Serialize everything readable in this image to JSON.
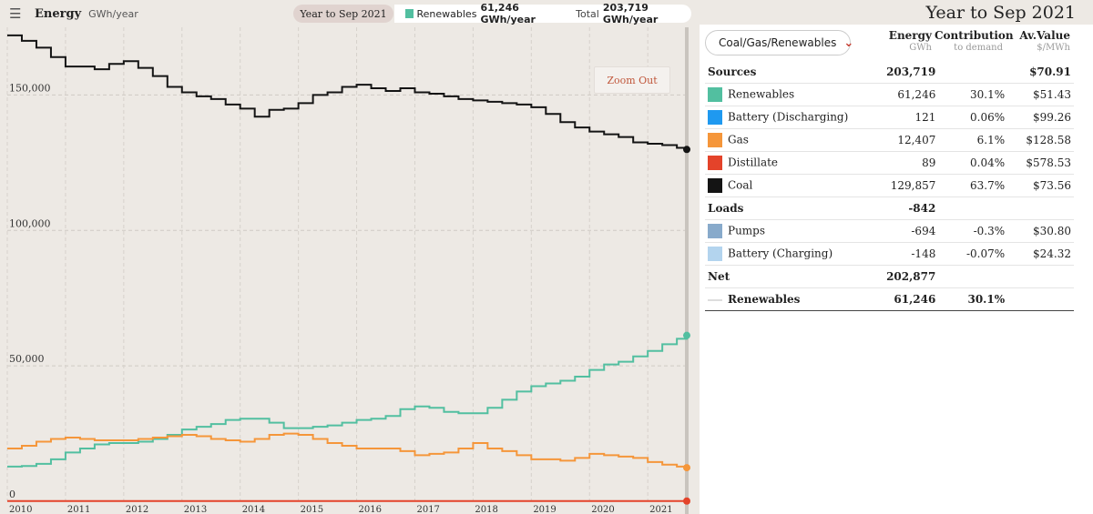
{
  "header": {
    "menu_icon": "hamburger-menu-icon",
    "title": "Energy",
    "unit": "GWh/year",
    "period": "Year to Sep 2021",
    "legend_series": "Renewables",
    "legend_value": "61,246 GWh/year",
    "total_label": "Total",
    "total_value": "203,719 GWh/year",
    "zoom_out": "Zoom Out"
  },
  "side": {
    "title": "Year to Sep 2021",
    "group_select": "Coal/Gas/Renewables",
    "columns": {
      "energy": "Energy",
      "energy_unit": "GWh",
      "contribution": "Contribution",
      "contribution_sub": "to demand",
      "value": "Av.Value",
      "value_unit": "$/MWh"
    },
    "sources": {
      "label": "Sources",
      "energy": "203,719",
      "value": "$70.91"
    },
    "source_rows": [
      {
        "name": "Renewables",
        "color": "#52bfa0",
        "energy": "61,246",
        "contribution": "30.1%",
        "value": "$51.43"
      },
      {
        "name": "Battery (Discharging)",
        "color": "#1f99f0",
        "energy": "121",
        "contribution": "0.06%",
        "value": "$99.26"
      },
      {
        "name": "Gas",
        "color": "#f5963a",
        "energy": "12,407",
        "contribution": "6.1%",
        "value": "$128.58"
      },
      {
        "name": "Distillate",
        "color": "#e4432a",
        "energy": "89",
        "contribution": "0.04%",
        "value": "$578.53"
      },
      {
        "name": "Coal",
        "color": "#141414",
        "energy": "129,857",
        "contribution": "63.7%",
        "value": "$73.56"
      }
    ],
    "loads": {
      "label": "Loads",
      "energy": "-842"
    },
    "load_rows": [
      {
        "name": "Pumps",
        "color": "#88aacb",
        "energy": "-694",
        "contribution": "-0.3%",
        "value": "$30.80"
      },
      {
        "name": "Battery (Charging)",
        "color": "#b3d4ee",
        "energy": "-148",
        "contribution": "-0.07%",
        "value": "$24.32"
      }
    ],
    "net": {
      "label": "Net",
      "energy": "202,877"
    },
    "renewables_row": {
      "label": "Renewables",
      "energy": "61,246",
      "contribution": "30.1%"
    }
  },
  "chart_data": {
    "type": "line",
    "ylim": [
      0,
      175000
    ],
    "xlim": [
      2010.0,
      2021.67
    ],
    "yticks": [
      0,
      50000,
      100000,
      150000
    ],
    "ytick_labels": [
      "0",
      "50,000",
      "100,000",
      "150,000"
    ],
    "xticks": [
      2010,
      2011,
      2012,
      2013,
      2014,
      2015,
      2016,
      2017,
      2018,
      2019,
      2020,
      2021
    ],
    "grid": true,
    "series": [
      {
        "name": "Coal",
        "color": "#141414",
        "x": [
          2010.0,
          2010.25,
          2010.5,
          2010.75,
          2011.0,
          2011.25,
          2011.5,
          2011.75,
          2012.0,
          2012.25,
          2012.5,
          2012.75,
          2013.0,
          2013.25,
          2013.5,
          2013.75,
          2014.0,
          2014.25,
          2014.5,
          2014.75,
          2015.0,
          2015.25,
          2015.5,
          2015.75,
          2016.0,
          2016.25,
          2016.5,
          2016.75,
          2017.0,
          2017.25,
          2017.5,
          2017.75,
          2018.0,
          2018.25,
          2018.5,
          2018.75,
          2019.0,
          2019.25,
          2019.5,
          2019.75,
          2020.0,
          2020.25,
          2020.5,
          2020.75,
          2021.0,
          2021.25,
          2021.5,
          2021.67
        ],
        "y": [
          172000,
          170000,
          167500,
          164000,
          160500,
          160500,
          159500,
          161500,
          162500,
          160000,
          157000,
          153000,
          151000,
          149500,
          148500,
          146500,
          145000,
          142000,
          144500,
          145000,
          147000,
          150000,
          151000,
          153000,
          153800,
          152500,
          151500,
          152500,
          151000,
          150500,
          149500,
          148500,
          148000,
          147500,
          147000,
          146500,
          145500,
          143000,
          140000,
          138000,
          136500,
          135500,
          134500,
          132500,
          132000,
          131500,
          130500,
          129900
        ]
      },
      {
        "name": "Renewables",
        "color": "#52bfa0",
        "x": [
          2010.0,
          2010.25,
          2010.5,
          2010.75,
          2011.0,
          2011.25,
          2011.5,
          2011.75,
          2012.0,
          2012.25,
          2012.5,
          2012.75,
          2013.0,
          2013.25,
          2013.5,
          2013.75,
          2014.0,
          2014.25,
          2014.5,
          2014.75,
          2015.0,
          2015.25,
          2015.5,
          2015.75,
          2016.0,
          2016.25,
          2016.5,
          2016.75,
          2017.0,
          2017.25,
          2017.5,
          2017.75,
          2018.0,
          2018.25,
          2018.5,
          2018.75,
          2019.0,
          2019.25,
          2019.5,
          2019.75,
          2020.0,
          2020.25,
          2020.5,
          2020.75,
          2021.0,
          2021.25,
          2021.5,
          2021.67
        ],
        "y": [
          12800,
          13000,
          13800,
          15500,
          18000,
          19500,
          21000,
          21500,
          21500,
          22000,
          23000,
          24500,
          26500,
          27500,
          28500,
          30000,
          30500,
          30500,
          29000,
          27000,
          27000,
          27500,
          28000,
          29000,
          30000,
          30500,
          31500,
          34000,
          35000,
          34500,
          33000,
          32500,
          32500,
          34500,
          37500,
          40500,
          42500,
          43500,
          44500,
          46000,
          48500,
          50500,
          51500,
          53500,
          55500,
          58000,
          60000,
          61246
        ]
      },
      {
        "name": "Gas",
        "color": "#f5963a",
        "x": [
          2010.0,
          2010.25,
          2010.5,
          2010.75,
          2011.0,
          2011.25,
          2011.5,
          2011.75,
          2012.0,
          2012.25,
          2012.5,
          2012.75,
          2013.0,
          2013.25,
          2013.5,
          2013.75,
          2014.0,
          2014.25,
          2014.5,
          2014.75,
          2015.0,
          2015.25,
          2015.5,
          2015.75,
          2016.0,
          2016.25,
          2016.5,
          2016.75,
          2017.0,
          2017.25,
          2017.5,
          2017.75,
          2018.0,
          2018.25,
          2018.5,
          2018.75,
          2019.0,
          2019.25,
          2019.5,
          2019.75,
          2020.0,
          2020.25,
          2020.5,
          2020.75,
          2021.0,
          2021.25,
          2021.5,
          2021.67
        ],
        "y": [
          19500,
          20500,
          22000,
          23000,
          23500,
          23000,
          22500,
          22500,
          22500,
          23000,
          23500,
          24000,
          24500,
          24000,
          23000,
          22500,
          22000,
          23000,
          24500,
          25000,
          24500,
          23000,
          21500,
          20500,
          19500,
          19500,
          19500,
          18500,
          17000,
          17500,
          18000,
          19500,
          21500,
          19500,
          18500,
          17000,
          15500,
          15500,
          15000,
          16000,
          17500,
          17000,
          16500,
          16000,
          14500,
          13500,
          12800,
          12407
        ]
      },
      {
        "name": "Distillate",
        "color": "#e4432a",
        "x": [
          2010.0,
          2021.67
        ],
        "y": [
          89,
          89
        ]
      }
    ]
  }
}
